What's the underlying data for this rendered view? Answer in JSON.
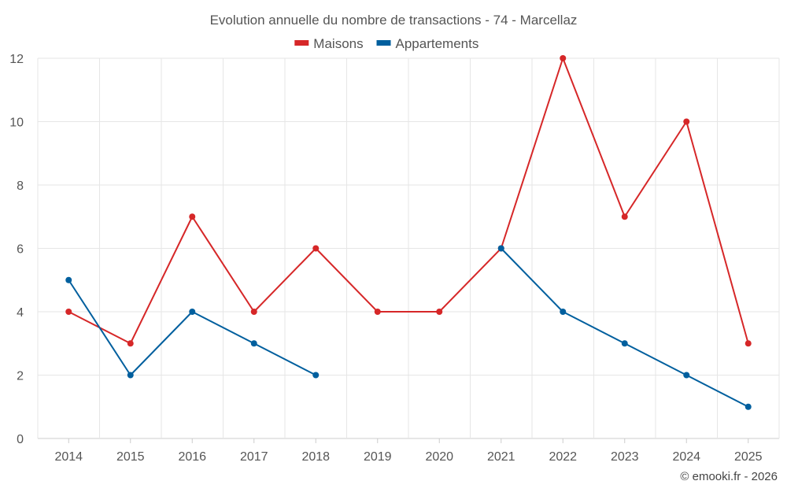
{
  "chart_data": {
    "type": "line",
    "title": "Evolution annuelle du nombre de transactions - 74 - Marcellaz",
    "categories": [
      "2014",
      "2015",
      "2016",
      "2017",
      "2018",
      "2019",
      "2020",
      "2021",
      "2022",
      "2023",
      "2024",
      "2025"
    ],
    "series": [
      {
        "name": "Maisons",
        "color": "#d62728",
        "values": [
          4,
          3,
          7,
          4,
          6,
          4,
          4,
          6,
          12,
          7,
          10,
          3
        ]
      },
      {
        "name": "Appartements",
        "color": "#005f9e",
        "values": [
          5,
          2,
          4,
          3,
          2,
          null,
          null,
          6,
          4,
          3,
          2,
          1
        ]
      }
    ],
    "ylim": [
      0,
      12
    ],
    "yticks": [
      0,
      2,
      4,
      6,
      8,
      10,
      12
    ],
    "grid": true,
    "legend": "top-center",
    "xlabel": "",
    "ylabel": ""
  },
  "credit": "© emooki.fr - 2026"
}
